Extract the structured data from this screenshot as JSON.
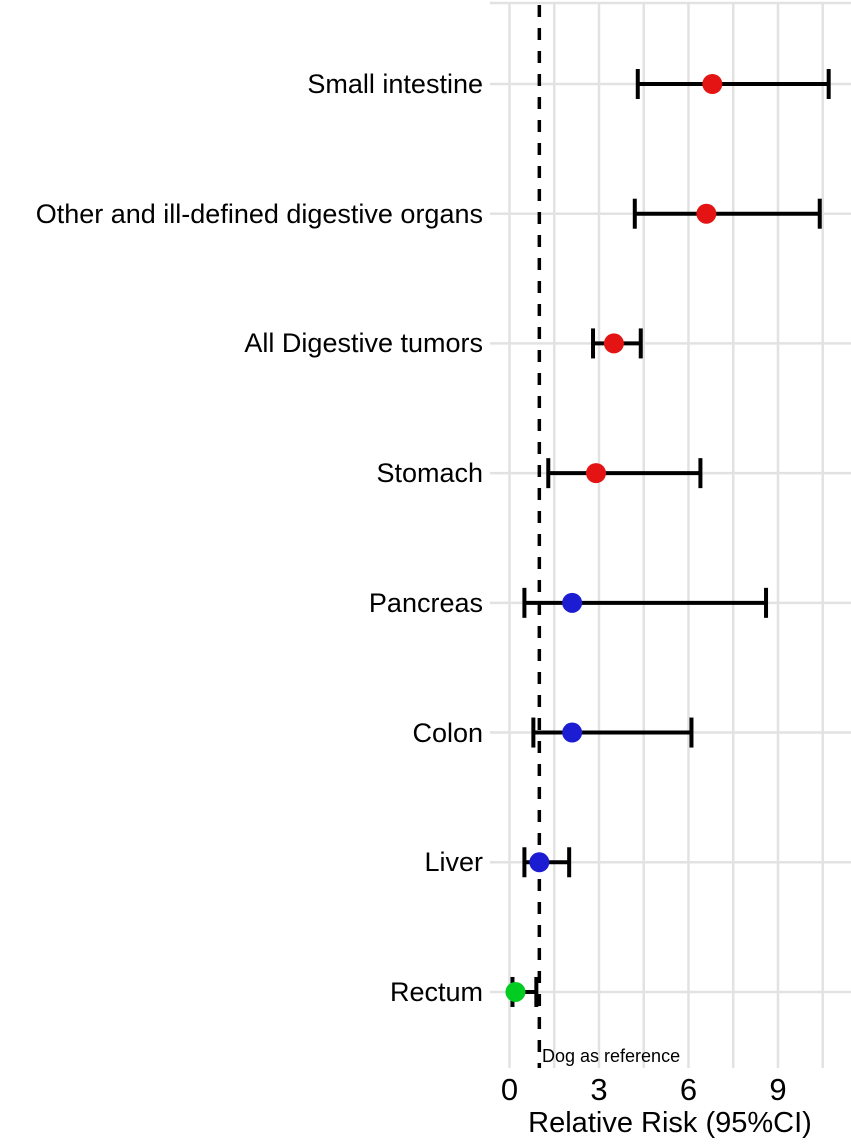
{
  "chart_data": {
    "type": "scatter",
    "subtype": "forest-plot",
    "title": "",
    "xlabel": "Relative Risk (95%CI)",
    "ylabel": "",
    "xlim": [
      -0.7,
      11.4
    ],
    "xticks": [
      "0",
      "3",
      "6",
      "9"
    ],
    "xtick_values": [
      0,
      3,
      6,
      9
    ],
    "gridline_interval": 1.5,
    "grid_color": "#e2e2e2",
    "legend_position": "none",
    "reference_line": {
      "x": 1,
      "style": "dashed",
      "color": "#000000",
      "label": "Dog as reference"
    },
    "point_colors": {
      "red": "#e41414",
      "blue": "#1c1cd2",
      "green": "#00cc22"
    },
    "rows": [
      {
        "label": "Small intestine",
        "rr": 6.8,
        "ci_low": 4.3,
        "ci_high": 10.7,
        "color": "red"
      },
      {
        "label": "Other and ill-defined digestive organs",
        "rr": 6.6,
        "ci_low": 4.2,
        "ci_high": 10.4,
        "color": "red"
      },
      {
        "label": "All Digestive tumors",
        "rr": 3.5,
        "ci_low": 2.8,
        "ci_high": 4.4,
        "color": "red"
      },
      {
        "label": "Stomach",
        "rr": 2.9,
        "ci_low": 1.3,
        "ci_high": 6.4,
        "color": "red"
      },
      {
        "label": "Pancreas",
        "rr": 2.1,
        "ci_low": 0.5,
        "ci_high": 8.6,
        "color": "blue"
      },
      {
        "label": "Colon",
        "rr": 2.1,
        "ci_low": 0.8,
        "ci_high": 6.1,
        "color": "blue"
      },
      {
        "label": "Liver",
        "rr": 1.0,
        "ci_low": 0.5,
        "ci_high": 2.0,
        "color": "blue"
      },
      {
        "label": "Rectum",
        "rr": 0.2,
        "ci_low": 0.1,
        "ci_high": 0.9,
        "color": "green"
      }
    ]
  }
}
